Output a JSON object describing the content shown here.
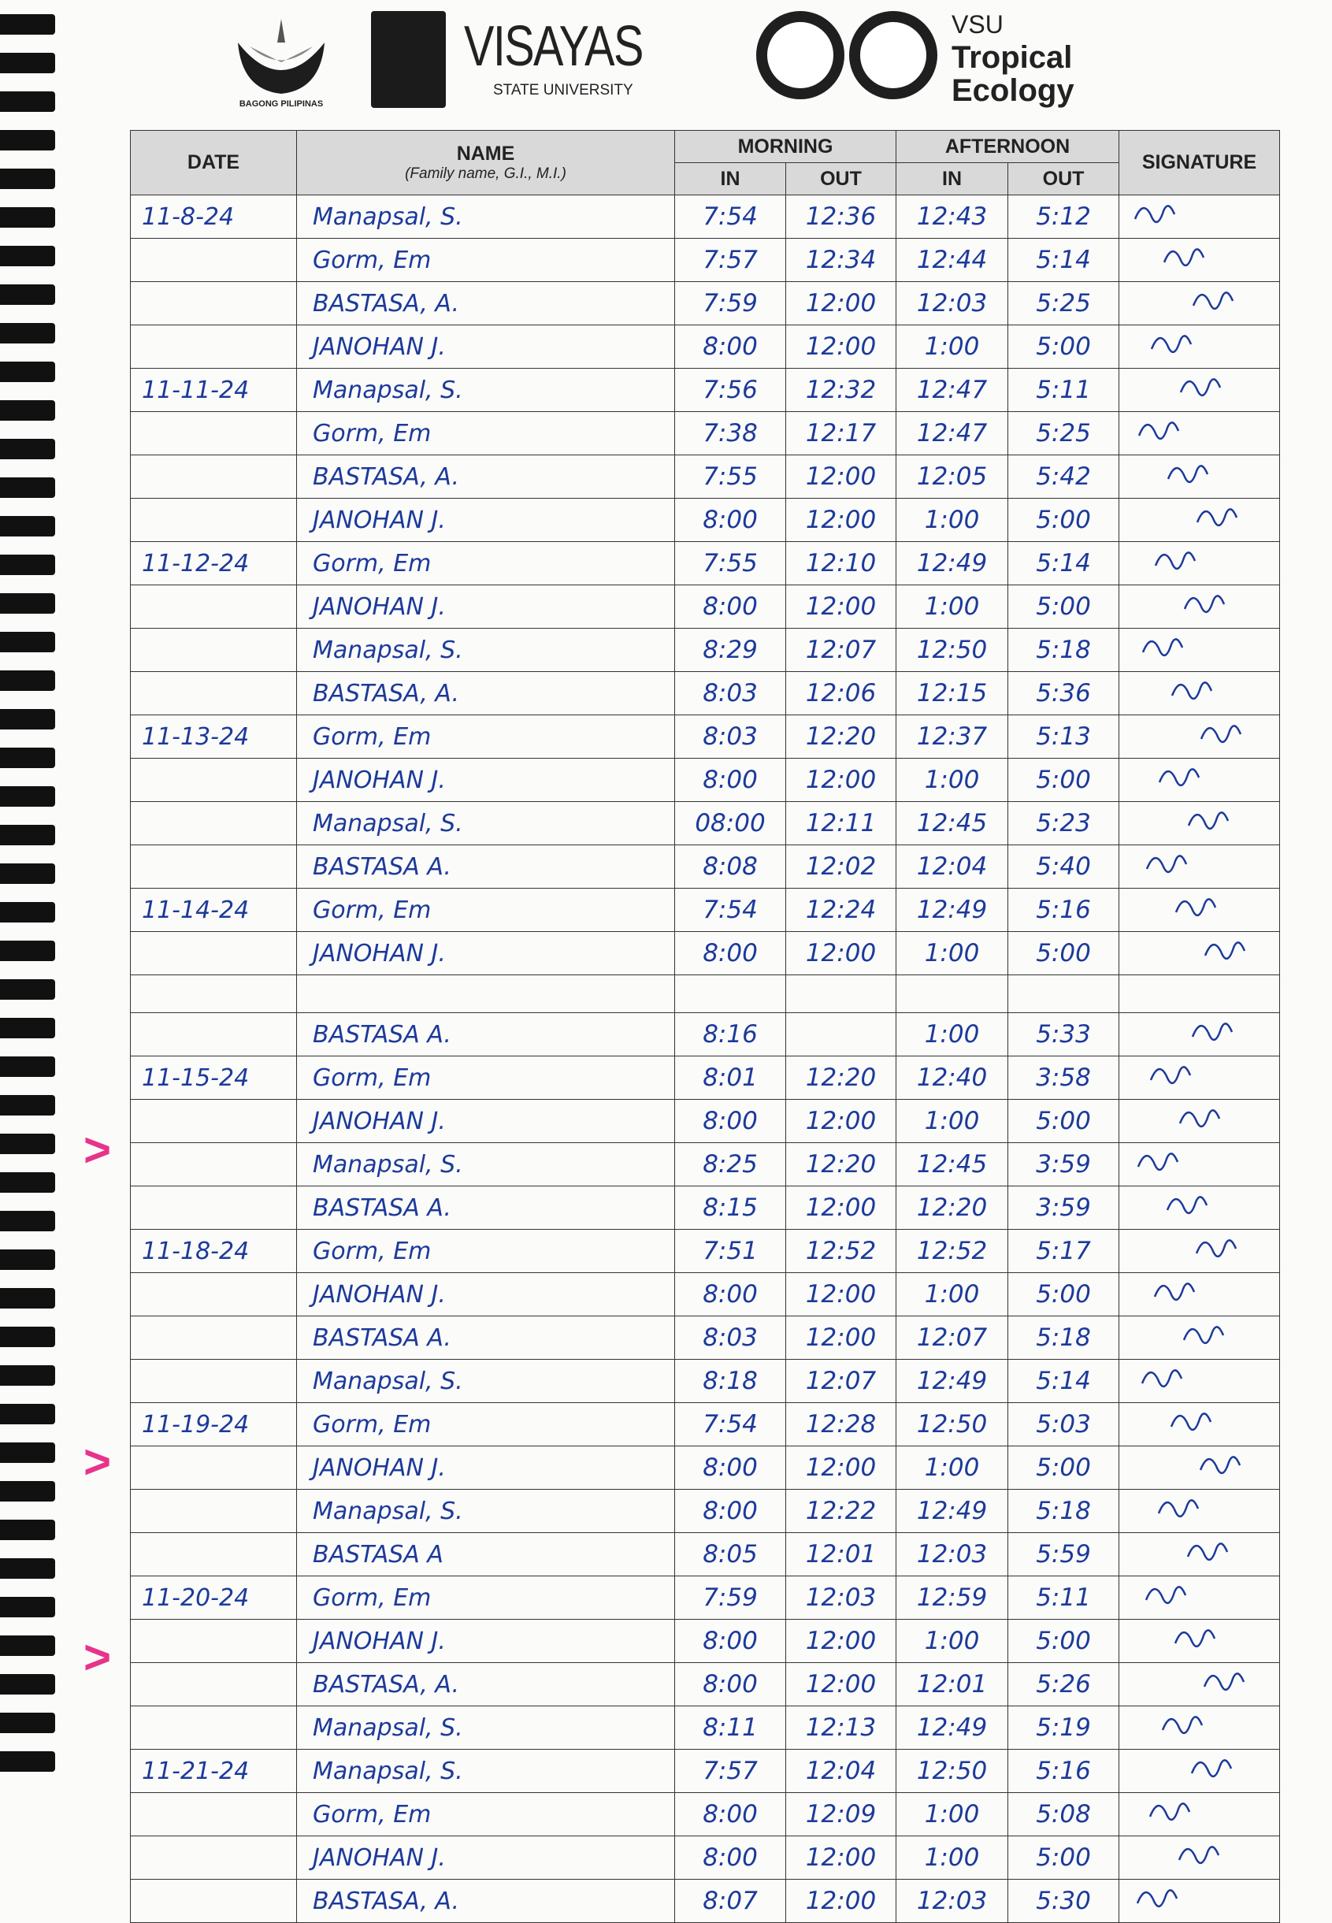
{
  "logos": {
    "bagong_pilipinas": "BAGONG PILIPINAS",
    "vsu_main": "VISAYAS",
    "vsu_sub": "STATE UNIVERSITY",
    "tropical_line1": "VSU",
    "tropical_line2": "Tropical",
    "tropical_line3": "Ecology"
  },
  "headers": {
    "date": "DATE",
    "name": "NAME",
    "name_sub": "(Family name, G.I., M.I.)",
    "morning": "MORNING",
    "afternoon": "AFTERNOON",
    "in": "IN",
    "out": "OUT",
    "signature": "SIGNATURE"
  },
  "colors": {
    "ink": "#1c3a9a",
    "highlight_arrow": "#e8338a",
    "header_bg": "#d9d9d9"
  },
  "highlighted_rows": [
    24,
    32,
    37
  ],
  "rows": [
    {
      "date": "11-8-24",
      "name": "Manapsal, S.",
      "am_in": "7:54",
      "am_out": "12:36",
      "pm_in": "12:43",
      "pm_out": "5:12"
    },
    {
      "date": "",
      "name": "Gorm, Em",
      "am_in": "7:57",
      "am_out": "12:34",
      "pm_in": "12:44",
      "pm_out": "5:14"
    },
    {
      "date": "",
      "name": "BASTASA, A.",
      "am_in": "7:59",
      "am_out": "12:00",
      "pm_in": "12:03",
      "pm_out": "5:25"
    },
    {
      "date": "",
      "name": "JANOHAN J.",
      "am_in": "8:00",
      "am_out": "12:00",
      "pm_in": "1:00",
      "pm_out": "5:00"
    },
    {
      "date": "11-11-24",
      "name": "Manapsal, S.",
      "am_in": "7:56",
      "am_out": "12:32",
      "pm_in": "12:47",
      "pm_out": "5:11"
    },
    {
      "date": "",
      "name": "Gorm, Em",
      "am_in": "7:38",
      "am_out": "12:17",
      "pm_in": "12:47",
      "pm_out": "5:25"
    },
    {
      "date": "",
      "name": "BASTASA, A.",
      "am_in": "7:55",
      "am_out": "12:00",
      "pm_in": "12:05",
      "pm_out": "5:42"
    },
    {
      "date": "",
      "name": "JANOHAN J.",
      "am_in": "8:00",
      "am_out": "12:00",
      "pm_in": "1:00",
      "pm_out": "5:00"
    },
    {
      "date": "11-12-24",
      "name": "Gorm, Em",
      "am_in": "7:55",
      "am_out": "12:10",
      "pm_in": "12:49",
      "pm_out": "5:14"
    },
    {
      "date": "",
      "name": "JANOHAN J.",
      "am_in": "8:00",
      "am_out": "12:00",
      "pm_in": "1:00",
      "pm_out": "5:00"
    },
    {
      "date": "",
      "name": "Manapsal, S.",
      "am_in": "8:29",
      "am_out": "12:07",
      "pm_in": "12:50",
      "pm_out": "5:18"
    },
    {
      "date": "",
      "name": "BASTASA, A.",
      "am_in": "8:03",
      "am_out": "12:06",
      "pm_in": "12:15",
      "pm_out": "5:36"
    },
    {
      "date": "11-13-24",
      "name": "Gorm, Em",
      "am_in": "8:03",
      "am_out": "12:20",
      "pm_in": "12:37",
      "pm_out": "5:13"
    },
    {
      "date": "",
      "name": "JANOHAN J.",
      "am_in": "8:00",
      "am_out": "12:00",
      "pm_in": "1:00",
      "pm_out": "5:00"
    },
    {
      "date": "",
      "name": "Manapsal, S.",
      "am_in": "08:00",
      "am_out": "12:11",
      "pm_in": "12:45",
      "pm_out": "5:23"
    },
    {
      "date": "",
      "name": "BASTASA A.",
      "am_in": "8:08",
      "am_out": "12:02",
      "pm_in": "12:04",
      "pm_out": "5:40"
    },
    {
      "date": "11-14-24",
      "name": "Gorm, Em",
      "am_in": "7:54",
      "am_out": "12:24",
      "pm_in": "12:49",
      "pm_out": "5:16"
    },
    {
      "date": "",
      "name": "JANOHAN J.",
      "am_in": "8:00",
      "am_out": "12:00",
      "pm_in": "1:00",
      "pm_out": "5:00"
    },
    {
      "date": "",
      "name": "",
      "am_in": "",
      "am_out": "",
      "pm_in": "",
      "pm_out": ""
    },
    {
      "date": "",
      "name": "BASTASA A.",
      "am_in": "8:16",
      "am_out": "",
      "pm_in": "1:00",
      "pm_out": "5:33"
    },
    {
      "date": "11-15-24",
      "name": "Gorm, Em",
      "am_in": "8:01",
      "am_out": "12:20",
      "pm_in": "12:40",
      "pm_out": "3:58"
    },
    {
      "date": "",
      "name": "JANOHAN J.",
      "am_in": "8:00",
      "am_out": "12:00",
      "pm_in": "1:00",
      "pm_out": "5:00"
    },
    {
      "date": "",
      "name": "Manapsal, S.",
      "am_in": "8:25",
      "am_out": "12:20",
      "pm_in": "12:45",
      "pm_out": "3:59"
    },
    {
      "date": "",
      "name": "BASTASA A.",
      "am_in": "8:15",
      "am_out": "12:00",
      "pm_in": "12:20",
      "pm_out": "3:59"
    },
    {
      "date": "11-18-24",
      "name": "Gorm, Em",
      "am_in": "7:51",
      "am_out": "12:52",
      "pm_in": "12:52",
      "pm_out": "5:17"
    },
    {
      "date": "",
      "name": "JANOHAN J.",
      "am_in": "8:00",
      "am_out": "12:00",
      "pm_in": "1:00",
      "pm_out": "5:00"
    },
    {
      "date": "",
      "name": "BASTASA A.",
      "am_in": "8:03",
      "am_out": "12:00",
      "pm_in": "12:07",
      "pm_out": "5:18"
    },
    {
      "date": "",
      "name": "Manapsal, S.",
      "am_in": "8:18",
      "am_out": "12:07",
      "pm_in": "12:49",
      "pm_out": "5:14"
    },
    {
      "date": "11-19-24",
      "name": "Gorm, Em",
      "am_in": "7:54",
      "am_out": "12:28",
      "pm_in": "12:50",
      "pm_out": "5:03"
    },
    {
      "date": "",
      "name": "JANOHAN J.",
      "am_in": "8:00",
      "am_out": "12:00",
      "pm_in": "1:00",
      "pm_out": "5:00"
    },
    {
      "date": "",
      "name": "Manapsal, S.",
      "am_in": "8:00",
      "am_out": "12:22",
      "pm_in": "12:49",
      "pm_out": "5:18"
    },
    {
      "date": "",
      "name": "BASTASA A",
      "am_in": "8:05",
      "am_out": "12:01",
      "pm_in": "12:03",
      "pm_out": "5:59"
    },
    {
      "date": "11-20-24",
      "name": "Gorm, Em",
      "am_in": "7:59",
      "am_out": "12:03",
      "pm_in": "12:59",
      "pm_out": "5:11"
    },
    {
      "date": "",
      "name": "JANOHAN J.",
      "am_in": "8:00",
      "am_out": "12:00",
      "pm_in": "1:00",
      "pm_out": "5:00"
    },
    {
      "date": "",
      "name": "BASTASA, A.",
      "am_in": "8:00",
      "am_out": "12:00",
      "pm_in": "12:01",
      "pm_out": "5:26"
    },
    {
      "date": "",
      "name": "Manapsal, S.",
      "am_in": "8:11",
      "am_out": "12:13",
      "pm_in": "12:49",
      "pm_out": "5:19"
    },
    {
      "date": "11-21-24",
      "name": "Manapsal, S.",
      "am_in": "7:57",
      "am_out": "12:04",
      "pm_in": "12:50",
      "pm_out": "5:16"
    },
    {
      "date": "",
      "name": "Gorm, Em",
      "am_in": "8:00",
      "am_out": "12:09",
      "pm_in": "1:00",
      "pm_out": "5:08"
    },
    {
      "date": "",
      "name": "JANOHAN J.",
      "am_in": "8:00",
      "am_out": "12:00",
      "pm_in": "1:00",
      "pm_out": "5:00"
    },
    {
      "date": "",
      "name": "BASTASA, A.",
      "am_in": "8:07",
      "am_out": "12:00",
      "pm_in": "12:03",
      "pm_out": "5:30"
    }
  ]
}
